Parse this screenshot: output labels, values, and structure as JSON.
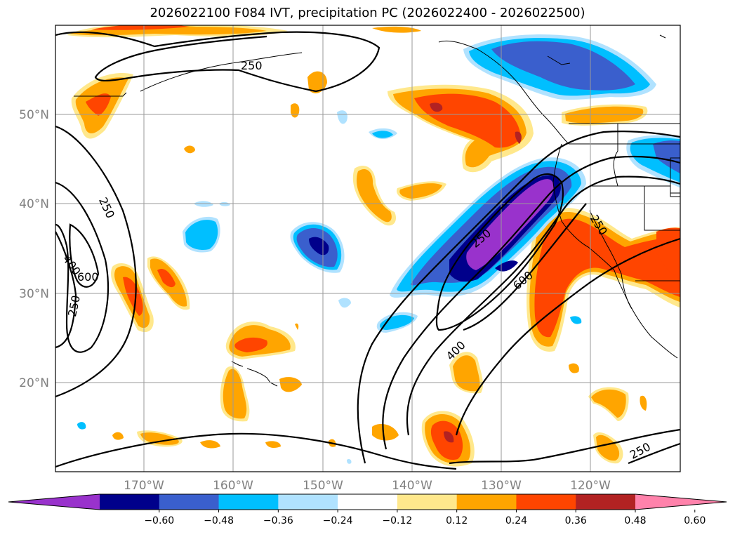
{
  "title": "2026022100 F084 IVT, precipitation PC (2026022400 - 2026022500)",
  "map": {
    "lat_labels": [
      "50°N",
      "40°N",
      "30°N",
      "20°N"
    ],
    "lon_labels": [
      "170°W",
      "160°W",
      "150°W",
      "140°W",
      "130°W",
      "120°W"
    ],
    "ivt_contour_labels": [
      "250",
      "250",
      "250",
      "250",
      "250",
      "400",
      "400",
      "600",
      "600",
      "250"
    ],
    "extent": {
      "lon": [
        -180,
        -110
      ],
      "lat": [
        10,
        60
      ]
    }
  },
  "colorbar": {
    "ticks": [
      "−0.60",
      "−0.48",
      "−0.36",
      "−0.24",
      "−0.12",
      "0.12",
      "0.24",
      "0.36",
      "0.48",
      "0.60"
    ],
    "colors": [
      "#9932CC",
      "#00008B",
      "#3A5FCD",
      "#00BFFF",
      "#B0E2FF",
      "#FFFFFF",
      "#FFE88C",
      "#FFA500",
      "#FF4500",
      "#B22222",
      "#FF82AB"
    ]
  }
}
